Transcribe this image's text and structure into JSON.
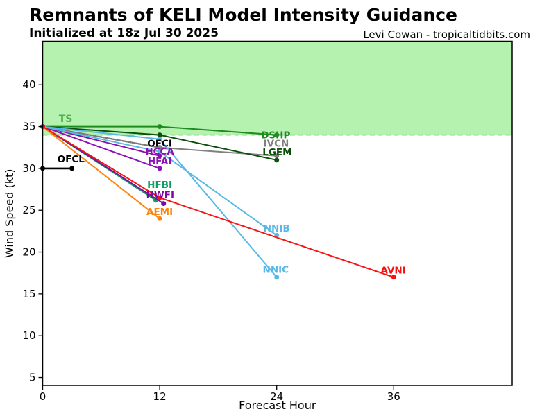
{
  "header": {
    "title": "Remnants of KELI Model Intensity Guidance",
    "subtitle": "Initialized at 18z Jul 30 2025",
    "credit": "Levi Cowan - tropicaltidbits.com"
  },
  "chart_data": {
    "type": "line",
    "title": "Remnants of KELI Model Intensity Guidance",
    "subtitle": "Initialized at 18z Jul 30 2025",
    "xlabel": "Forecast Hour",
    "ylabel": "Wind Speed (kt)",
    "xlim": [
      0,
      48.15
    ],
    "ylim": [
      4.05,
      45.2
    ],
    "xticks": [
      0,
      12,
      24,
      36
    ],
    "yticks": [
      5,
      10,
      15,
      20,
      25,
      30,
      35,
      40
    ],
    "grid": false,
    "legend_position": "inline-labels-at-line-ends",
    "ts_threshold": {
      "label": "TS",
      "value_kt": 34,
      "band_top_kt": 45.2,
      "band_fill": "#b5f1af",
      "dash_color": "#85d985",
      "label_color": "#4fae4f",
      "label_at": [
        2.35,
        35.95
      ]
    },
    "series": [
      {
        "name": "OFCL",
        "color": "#000000",
        "width": 2.6,
        "points": [
          [
            0,
            30
          ],
          [
            3,
            30
          ]
        ],
        "label_at": [
          2.9,
          31.15
        ]
      },
      {
        "name": "OFCI",
        "color": "#000000",
        "width": 2,
        "points": [
          [
            0,
            35
          ],
          [
            12,
            32.5
          ]
        ],
        "label_at": [
          12,
          33.0
        ]
      },
      {
        "name": "HCCA",
        "color": "#8a11ae",
        "width": 2,
        "points": [
          [
            0,
            35
          ],
          [
            12,
            31.5
          ]
        ],
        "label_at": [
          12,
          32.05
        ]
      },
      {
        "name": "HFAI",
        "color": "#8d13b4",
        "width": 2,
        "points": [
          [
            0,
            35
          ],
          [
            12,
            30
          ]
        ],
        "label_at": [
          12,
          30.9
        ]
      },
      {
        "name": "HFBI",
        "color": "#0aa05f",
        "width": 2,
        "points": [
          [
            0,
            35
          ],
          [
            11.6,
            26.2
          ]
        ],
        "label_at": [
          12,
          28.05
        ]
      },
      {
        "name": "HWFI",
        "color": "#7c0ba3",
        "width": 2,
        "points": [
          [
            0,
            35
          ],
          [
            12.4,
            25.8
          ]
        ],
        "label_at": [
          12.05,
          26.85
        ]
      },
      {
        "name": "AEMI",
        "color": "#ff840d",
        "width": 2,
        "points": [
          [
            0,
            35
          ],
          [
            12,
            24
          ]
        ],
        "label_at": [
          12,
          24.85
        ]
      },
      {
        "name": "DSHP",
        "color": "#1f8c1f",
        "width": 2,
        "points": [
          [
            0,
            35
          ],
          [
            12,
            35
          ],
          [
            24,
            34
          ]
        ],
        "label_at": [
          23.9,
          34.0
        ]
      },
      {
        "name": "IVCN",
        "color": "#808080",
        "width": 2,
        "points": [
          [
            0,
            35
          ],
          [
            12,
            32.5
          ],
          [
            24,
            31.5
          ]
        ],
        "label_at": [
          23.95,
          33.0
        ]
      },
      {
        "name": "LGEM",
        "color": "#0b4f0b",
        "width": 2,
        "points": [
          [
            0,
            35
          ],
          [
            12,
            34
          ],
          [
            24,
            31
          ]
        ],
        "label_at": [
          24.05,
          31.95
        ]
      },
      {
        "name": "NNIB",
        "color": "#58b8e6",
        "width": 2,
        "points": [
          [
            0,
            35
          ],
          [
            12,
            32
          ],
          [
            24,
            22
          ]
        ],
        "label_at": [
          24,
          22.85
        ]
      },
      {
        "name": "NNIC",
        "color": "#58b8e6",
        "width": 2,
        "points": [
          [
            0,
            35
          ],
          [
            12,
            33.5
          ],
          [
            24,
            17
          ]
        ],
        "label_at": [
          23.9,
          17.9
        ]
      },
      {
        "name": "AVNI",
        "color": "#f51515",
        "width": 2,
        "points": [
          [
            0,
            35
          ],
          [
            12,
            26.5
          ],
          [
            36,
            17
          ]
        ],
        "label_at": [
          35.95,
          17.85
        ]
      }
    ]
  }
}
